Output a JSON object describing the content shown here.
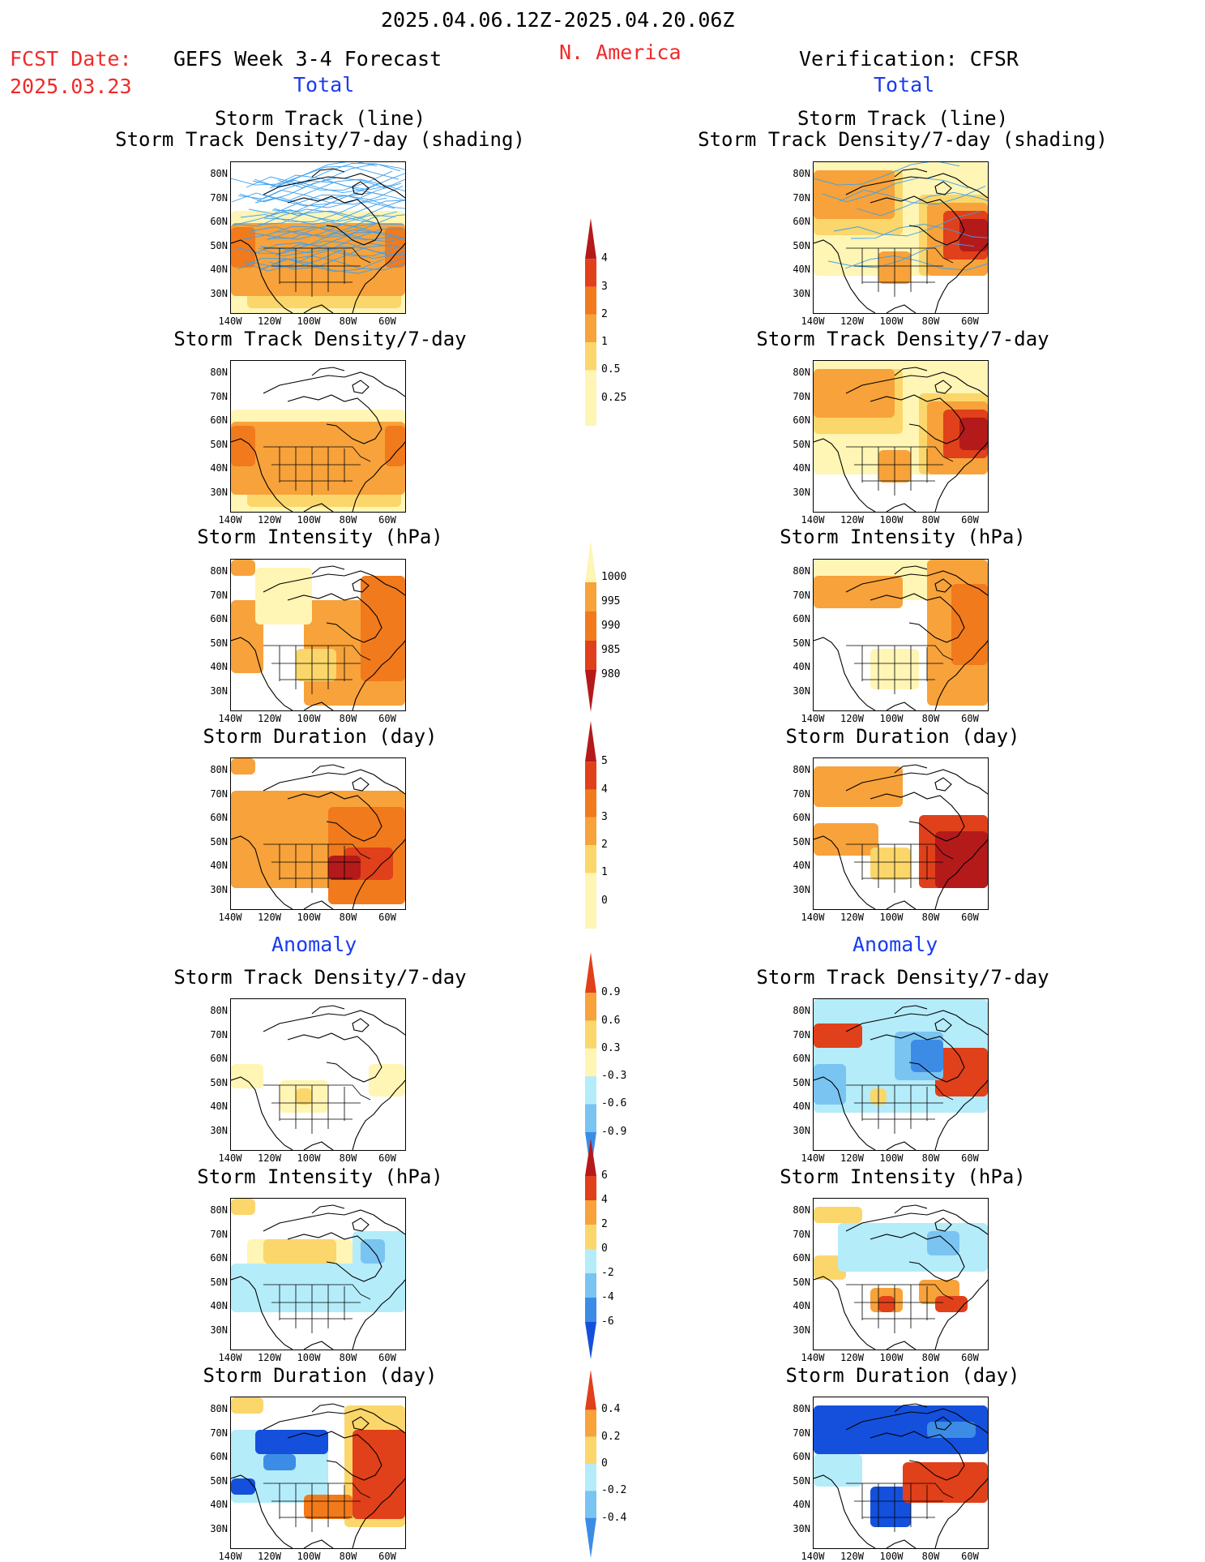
{
  "header": {
    "date_range": "2025.04.06.12Z-2025.04.20.06Z",
    "fcst_label": "FCST Date:",
    "fcst_date": "2025.03.23",
    "left_title": "GEFS Week 3-4 Forecast",
    "region": "N. America",
    "right_title": "Verification: CFSR",
    "total_label": "Total",
    "anomaly_label": "Anomaly"
  },
  "panel_titles": {
    "track_line": "Storm Track (line)",
    "track_shading": "Storm Track Density/7-day (shading)",
    "density": "Storm Track Density/7-day",
    "intensity": "Storm Intensity (hPa)",
    "duration": "Storm Duration (day)"
  },
  "axes": {
    "lat_ticks": [
      "80N",
      "70N",
      "60N",
      "50N",
      "40N",
      "30N"
    ],
    "lon_ticks": [
      "140W",
      "120W",
      "100W",
      "80W",
      "60W"
    ]
  },
  "colorbars": {
    "density_total": [
      "4",
      "3",
      "2",
      "1",
      "0.5",
      "0.25"
    ],
    "intensity_total": [
      "1000",
      "995",
      "990",
      "985",
      "980"
    ],
    "duration_total": [
      "5",
      "4",
      "3",
      "2",
      "1",
      "0"
    ],
    "density_anom": [
      "0.9",
      "0.6",
      "0.3",
      "-0.3",
      "-0.6",
      "-0.9"
    ],
    "intensity_anom": [
      "6",
      "4",
      "2",
      "0",
      "-2",
      "-4",
      "-6"
    ],
    "duration_anom": [
      "0.4",
      "0.2",
      "0",
      "-0.2",
      "-0.4"
    ]
  },
  "colors": {
    "light_yellow": "#fff5b4",
    "yellow": "#fbd66a",
    "orange": "#f7a23a",
    "dark_orange": "#f17a1c",
    "red": "#e0401a",
    "dark_red": "#b41a1a",
    "light_blue": "#b4ecfa",
    "mid_blue": "#7ac4f2",
    "blue": "#3c8ce6",
    "dark_blue": "#1450dc",
    "track_line": "#3ca0f0"
  }
}
